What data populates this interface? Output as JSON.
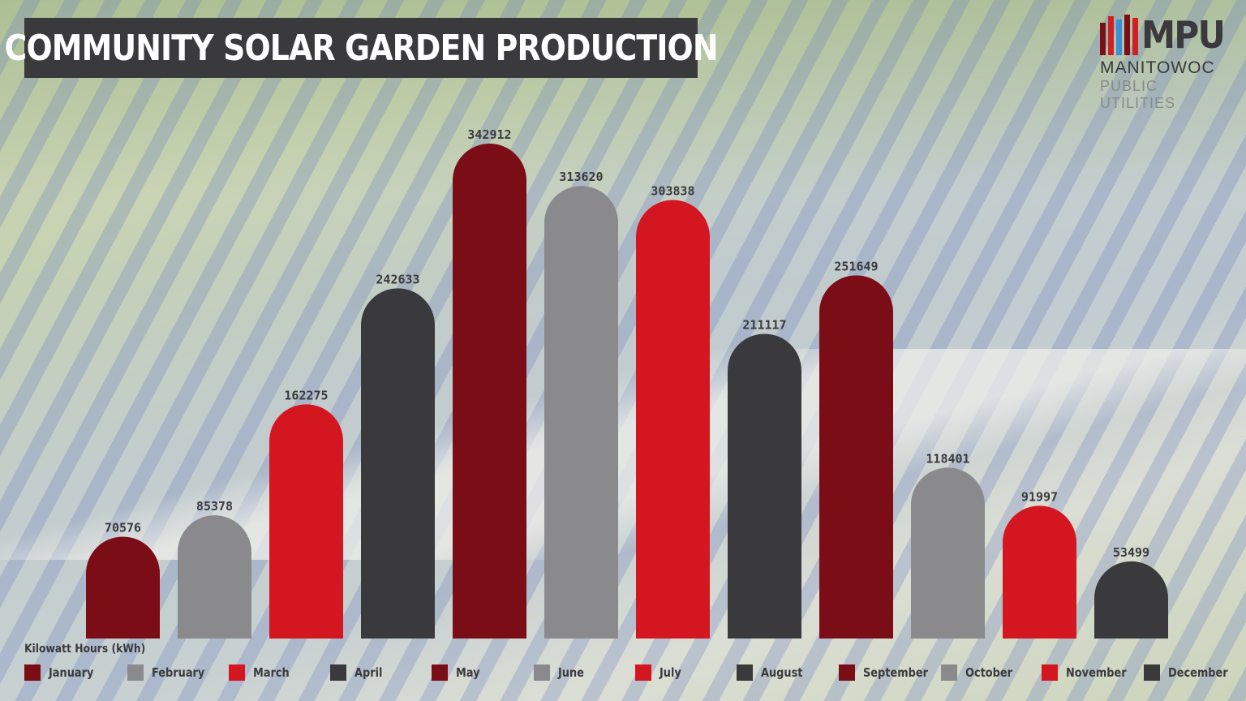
{
  "title": "COMMUNITY SOLAR GARDEN PRODUCTION",
  "logo": {
    "mark_text": "MPU",
    "line1": "MANITOWOC",
    "line2": "PUBLIC UTILITIES",
    "bar_colors": [
      "#7a0f18",
      "#d11f26",
      "#3b8ed8",
      "#7a0f18",
      "#d11f26"
    ]
  },
  "colors": {
    "dark_red": "#7b0d16",
    "light_gray": "#8a8a8c",
    "red": "#d3161f",
    "dark_gray": "#3a3a3c"
  },
  "chart_data": {
    "type": "bar",
    "title": "COMMUNITY SOLAR GARDEN PRODUCTION",
    "ylabel": "Kilowatt Hours (kWh)",
    "xlabel": "",
    "ylim": [
      0,
      342912
    ],
    "grid": false,
    "legend_position": "bottom",
    "categories": [
      "January",
      "February",
      "March",
      "April",
      "May",
      "June",
      "July",
      "August",
      "September",
      "October",
      "November",
      "December"
    ],
    "values": [
      70576,
      85378,
      162275,
      242633,
      342912,
      313620,
      303838,
      211117,
      251649,
      118401,
      91997,
      53499
    ],
    "bar_colors": [
      "#7b0d16",
      "#8a8a8c",
      "#d3161f",
      "#3a3a3c",
      "#7b0d16",
      "#8a8a8c",
      "#d3161f",
      "#3a3a3c",
      "#7b0d16",
      "#8a8a8c",
      "#d3161f",
      "#3a3a3c"
    ]
  }
}
